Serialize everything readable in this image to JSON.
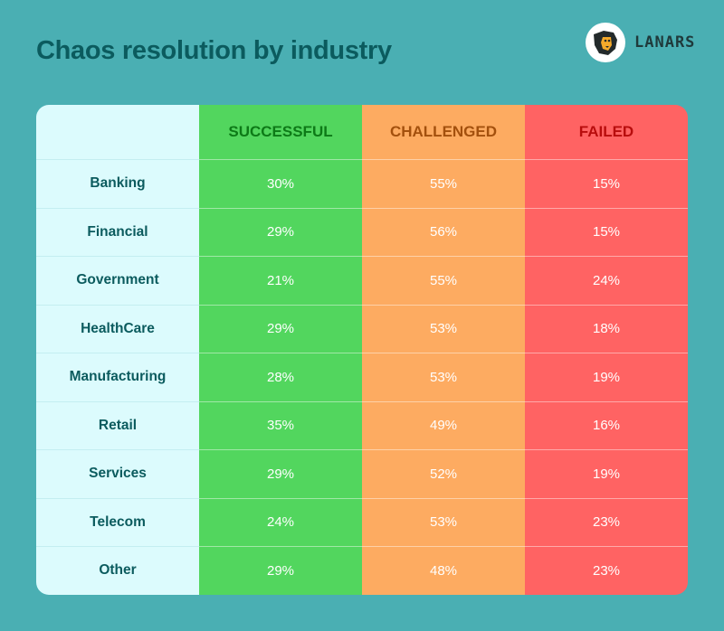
{
  "title": "Chaos resolution by industry",
  "logo": {
    "text": "LANARS",
    "icon": "lion-icon"
  },
  "colors": {
    "background": "#4aafb3",
    "successful": "#52d65e",
    "challenged": "#fdab61",
    "failed": "#ff6363",
    "industry_column": "#dcfbfd",
    "successful_header_text": "#0d7a17",
    "challenged_header_text": "#a3500d",
    "failed_header_text": "#b80d0d"
  },
  "headers": {
    "industry": "",
    "successful": "SUCCESSFUL",
    "challenged": "CHALLENGED",
    "failed": "FAILED"
  },
  "chart_data": {
    "type": "table",
    "title": "Chaos resolution by industry",
    "columns": [
      "SUCCESSFUL",
      "CHALLENGED",
      "FAILED"
    ],
    "rows": [
      {
        "industry": "Banking",
        "successful": "30%",
        "challenged": "55%",
        "failed": "15%"
      },
      {
        "industry": "Financial",
        "successful": "29%",
        "challenged": "56%",
        "failed": "15%"
      },
      {
        "industry": "Government",
        "successful": "21%",
        "challenged": "55%",
        "failed": "24%"
      },
      {
        "industry": "HealthCare",
        "successful": "29%",
        "challenged": "53%",
        "failed": "18%"
      },
      {
        "industry": "Manufacturing",
        "successful": "28%",
        "challenged": "53%",
        "failed": "19%"
      },
      {
        "industry": "Retail",
        "successful": "35%",
        "challenged": "49%",
        "failed": "16%"
      },
      {
        "industry": "Services",
        "successful": "29%",
        "challenged": "52%",
        "failed": "19%"
      },
      {
        "industry": "Telecom",
        "successful": "24%",
        "challenged": "53%",
        "failed": "23%"
      },
      {
        "industry": "Other",
        "successful": "29%",
        "challenged": "48%",
        "failed": "23%"
      }
    ]
  }
}
